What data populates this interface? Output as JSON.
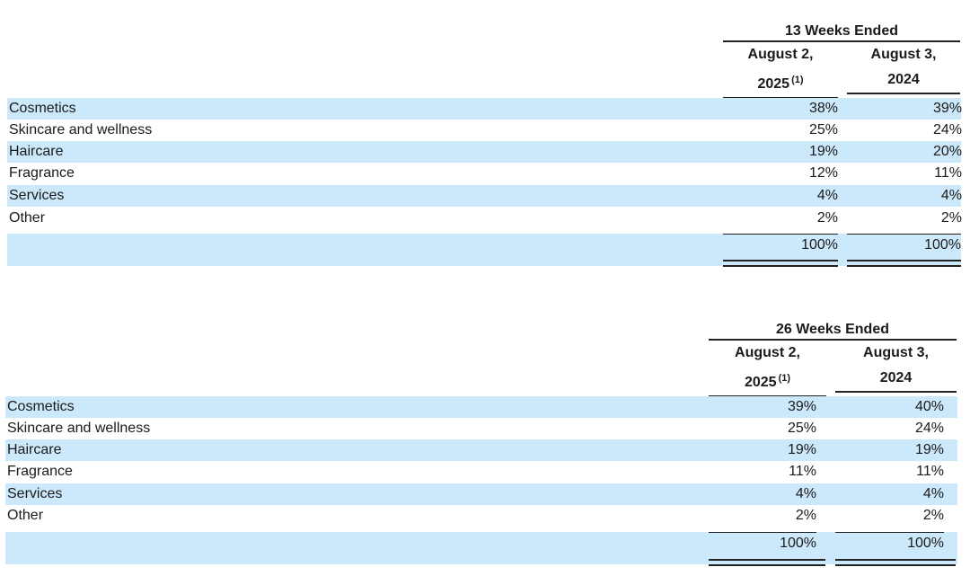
{
  "tables": [
    {
      "period": "13 Weeks Ended",
      "columns": [
        {
          "line1": "August 2,",
          "line2": "2025",
          "footnote": "(1)"
        },
        {
          "line1": "August 3,",
          "line2": "2024",
          "footnote": ""
        }
      ],
      "rows": [
        {
          "label": "Cosmetics",
          "values": [
            "38%",
            "39%"
          ]
        },
        {
          "label": "Skincare and wellness",
          "values": [
            "25%",
            "24%"
          ]
        },
        {
          "label": "Haircare",
          "values": [
            "19%",
            "20%"
          ]
        },
        {
          "label": "Fragrance",
          "values": [
            "12%",
            "11%"
          ]
        },
        {
          "label": "Services",
          "values": [
            "4%",
            "4%"
          ]
        },
        {
          "label": "Other",
          "values": [
            "2%",
            "2%"
          ]
        }
      ],
      "totals": [
        "100%",
        "100%"
      ]
    },
    {
      "period": "26 Weeks Ended",
      "columns": [
        {
          "line1": "August 2,",
          "line2": "2025",
          "footnote": "(1)"
        },
        {
          "line1": "August 3,",
          "line2": "2024",
          "footnote": ""
        }
      ],
      "rows": [
        {
          "label": "Cosmetics",
          "values": [
            "39%",
            "40%"
          ]
        },
        {
          "label": "Skincare and wellness",
          "values": [
            "25%",
            "24%"
          ]
        },
        {
          "label": "Haircare",
          "values": [
            "19%",
            "19%"
          ]
        },
        {
          "label": "Fragrance",
          "values": [
            "11%",
            "11%"
          ]
        },
        {
          "label": "Services",
          "values": [
            "4%",
            "4%"
          ]
        },
        {
          "label": "Other",
          "values": [
            "2%",
            "2%"
          ]
        }
      ],
      "totals": [
        "100%",
        "100%"
      ]
    }
  ]
}
